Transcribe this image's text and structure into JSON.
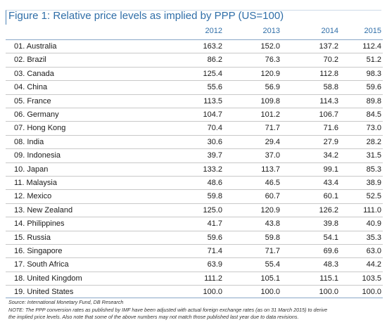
{
  "chart_data": {
    "type": "table",
    "title": "Figure 1: Relative price levels as implied by PPP (US=100)",
    "columns": [
      "2012",
      "2013",
      "2014",
      "2015"
    ],
    "rows": [
      {
        "name": "01. Australia",
        "values": [
          "163.2",
          "152.0",
          "137.2",
          "112.4"
        ]
      },
      {
        "name": "02. Brazil",
        "values": [
          "86.2",
          "76.3",
          "70.2",
          "51.2"
        ]
      },
      {
        "name": "03. Canada",
        "values": [
          "125.4",
          "120.9",
          "112.8",
          "98.3"
        ]
      },
      {
        "name": "04. China",
        "values": [
          "55.6",
          "56.9",
          "58.8",
          "59.6"
        ]
      },
      {
        "name": "05. France",
        "values": [
          "113.5",
          "109.8",
          "114.3",
          "89.8"
        ]
      },
      {
        "name": "06. Germany",
        "values": [
          "104.7",
          "101.2",
          "106.7",
          "84.5"
        ]
      },
      {
        "name": "07. Hong Kong",
        "values": [
          "70.4",
          "71.7",
          "71.6",
          "73.0"
        ]
      },
      {
        "name": "08. India",
        "values": [
          "30.6",
          "29.4",
          "27.9",
          "28.2"
        ]
      },
      {
        "name": "09. Indonesia",
        "values": [
          "39.7",
          "37.0",
          "34.2",
          "31.5"
        ]
      },
      {
        "name": "10. Japan",
        "values": [
          "133.2",
          "113.7",
          "99.1",
          "85.3"
        ]
      },
      {
        "name": "11. Malaysia",
        "values": [
          "48.6",
          "46.5",
          "43.4",
          "38.9"
        ]
      },
      {
        "name": "12. Mexico",
        "values": [
          "59.8",
          "60.7",
          "60.1",
          "52.5"
        ]
      },
      {
        "name": "13. New Zealand",
        "values": [
          "125.0",
          "120.9",
          "126.2",
          "111.0"
        ]
      },
      {
        "name": "14. Philippines",
        "values": [
          "41.7",
          "43.8",
          "39.8",
          "40.9"
        ]
      },
      {
        "name": "15. Russia",
        "values": [
          "59.6",
          "59.8",
          "54.1",
          "35.3"
        ]
      },
      {
        "name": "16. Singapore",
        "values": [
          "71.4",
          "71.7",
          "69.6",
          "63.0"
        ]
      },
      {
        "name": "17. South Africa",
        "values": [
          "63.9",
          "55.4",
          "48.3",
          "44.2"
        ]
      },
      {
        "name": "18. United Kingdom",
        "values": [
          "111.2",
          "105.1",
          "115.1",
          "103.5"
        ]
      },
      {
        "name": "19. United States",
        "values": [
          "100.0",
          "100.0",
          "100.0",
          "100.0"
        ]
      }
    ],
    "source": "Source: International Monetary Fund, DB Research",
    "note_line1": "NOTE: The PPP conversion rates as published by IMF have been adjusted with actual foreign exchange rates (as on 31 March 2015) to derive",
    "note_line2": "the implied price levels. Also note that some of the above numbers may not match those published last year due to data revisions.",
    "accent_color": "#2f6ea8"
  }
}
